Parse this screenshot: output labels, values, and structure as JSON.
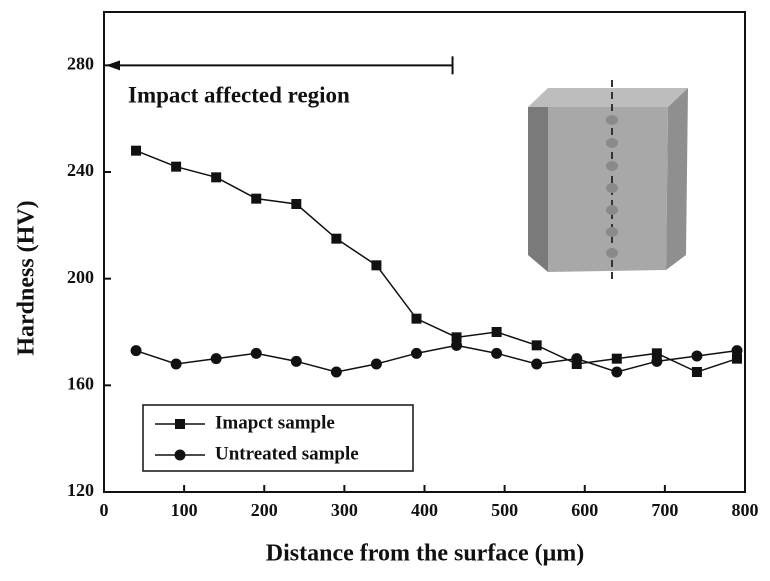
{
  "chart_data": {
    "type": "line",
    "x_label": "Distance from the surface (μm)",
    "y_label": "Hardness (HV)",
    "annotation": {
      "text": "Impact affected region",
      "x": [
        0,
        435
      ],
      "y": 280
    },
    "xlim": [
      0,
      800
    ],
    "xticks": [
      0,
      100,
      200,
      300,
      400,
      500,
      600,
      700,
      800
    ],
    "ylim": [
      120,
      300
    ],
    "yticks": [
      120,
      160,
      200,
      240,
      280
    ],
    "legend": "lower left",
    "x": [
      40,
      90,
      140,
      190,
      240,
      290,
      340,
      390,
      440,
      490,
      540,
      590,
      640,
      690,
      740,
      790
    ],
    "series": [
      {
        "name": "Imapct sample",
        "color": "#111111",
        "marker": "square",
        "values": [
          248,
          242,
          238,
          230,
          228,
          215,
          205,
          185,
          178,
          180,
          175,
          168,
          170,
          172,
          165,
          170
        ]
      },
      {
        "name": "Untreated sample",
        "color": "#111111",
        "marker": "circle",
        "values": [
          173,
          168,
          170,
          172,
          169,
          165,
          168,
          172,
          175,
          172,
          168,
          170,
          165,
          169,
          171,
          173
        ]
      }
    ]
  }
}
